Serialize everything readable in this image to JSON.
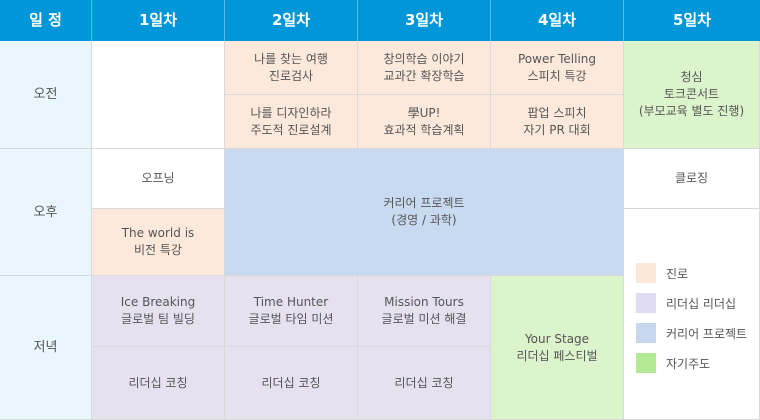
{
  "header": {
    "schedule": "일 정",
    "days": [
      "1일차",
      "2일차",
      "3일차",
      "4일차",
      "5일차"
    ]
  },
  "periods": [
    "오전",
    "오후",
    "저녁"
  ],
  "cells": {
    "d1_afternoon1": "오프닝",
    "d1_afternoon2": "The world is\n비전 특강",
    "d1_evening1": "Ice Breaking\n글로벌 팀 빌딩",
    "d1_evening2": "리더십 코칭",
    "d2_morning1": "나를 찾는 여행\n진로검사",
    "d2_morning2": "나를 디자인하라\n주도적 진로설계",
    "d2_evening1": "Time Hunter\n글로벌 타임 미션",
    "d2_evening2": "리더십 코칭",
    "d3_morning1": "창의학습 이야기\n교과간 확장학습",
    "d3_morning2": "學UP!\n효과적 학습계획",
    "d3_evening1": "Mission Tours\n글로벌 미션 해결",
    "d3_evening2": "리더십 코칭",
    "d4_morning1": "Power Telling\n스피치 특강",
    "d4_morning2": "팝업 스피치\n자기 PR 대회",
    "d4_evening": "Your Stage\n리더십 페스티벌",
    "career_project": "커리어 프로젝트\n(경영 / 과학)",
    "d5_morning": "청심\n토크콘서트\n(부모교육 별도 진행)",
    "d5_afternoon": "클로징"
  },
  "legend": [
    {
      "label": "진로",
      "color": "#fde8d8"
    },
    {
      "label": "리더십 리더십",
      "color": "#e0dcf6"
    },
    {
      "label": "커리어 프로젝트",
      "color": "#c6d7ee"
    },
    {
      "label": "자기주도",
      "color": "#b4ea94"
    }
  ],
  "colors": {
    "header": "#0096d8",
    "period": "#e9f6fd",
    "career": "#fce9dc",
    "leadership": "#e5e1ee",
    "project": "#c8daef",
    "self_directed": "#dcf4cc"
  }
}
